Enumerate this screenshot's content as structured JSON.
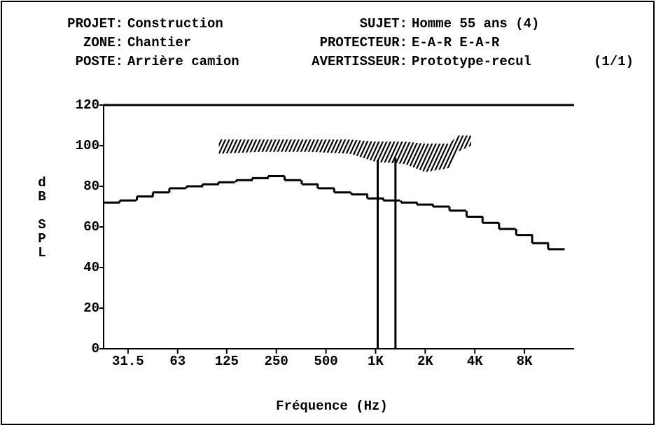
{
  "header": {
    "left": [
      {
        "label": "PROJET:",
        "value": "Construction"
      },
      {
        "label": "ZONE:",
        "value": "Chantier"
      },
      {
        "label": "POSTE:",
        "value": "Arrière camion"
      }
    ],
    "right": [
      {
        "label": "SUJET:",
        "value": "Homme 55 ans (4)"
      },
      {
        "label": "PROTECTEUR:",
        "value": "E-A-R E-A-R"
      },
      {
        "label": "AVERTISSEUR:",
        "value": "Prototype-recul"
      }
    ],
    "page": "(1/1)"
  },
  "chart_data": {
    "type": "step",
    "xlabel": "Fréquence (Hz)",
    "ylabel": "dB SPL",
    "x": [
      25,
      31.5,
      40,
      50,
      63,
      80,
      100,
      125,
      160,
      200,
      250,
      315,
      400,
      500,
      630,
      800,
      1000,
      1250,
      1600,
      2000,
      2500,
      3150,
      4000,
      5000,
      6300,
      8000,
      10000,
      12500
    ],
    "values": [
      72,
      73,
      75,
      77,
      79,
      80,
      81,
      82,
      83,
      84,
      85,
      83,
      81,
      79,
      77,
      76,
      74,
      73,
      72,
      71,
      70,
      68,
      65,
      62,
      59,
      56,
      52,
      49
    ],
    "color": "#000000",
    "hatch": {
      "x": [
        112,
        200,
        400,
        700,
        1000,
        1500,
        2000,
        2800,
        3150,
        3800
      ],
      "high": [
        103,
        103,
        103,
        103,
        102,
        102,
        101,
        101,
        105,
        105
      ],
      "low": [
        96,
        97,
        97,
        96,
        92,
        91,
        87,
        89,
        97,
        100
      ]
    },
    "markers": [
      {
        "x": 1030,
        "value": 93
      },
      {
        "x": 1320,
        "value": 94
      }
    ],
    "xlog": true,
    "xlim": [
      22.4,
      16000
    ],
    "ylim": [
      0,
      120
    ],
    "xticks": [
      31.5,
      63,
      125,
      250,
      500,
      {
        "value": 1000,
        "label": "1K"
      },
      {
        "value": 2000,
        "label": "2K"
      },
      {
        "value": 4000,
        "label": "4K"
      },
      {
        "value": 8000,
        "label": "8K"
      }
    ],
    "yticks": [
      0,
      20,
      40,
      60,
      80,
      100,
      120
    ]
  }
}
